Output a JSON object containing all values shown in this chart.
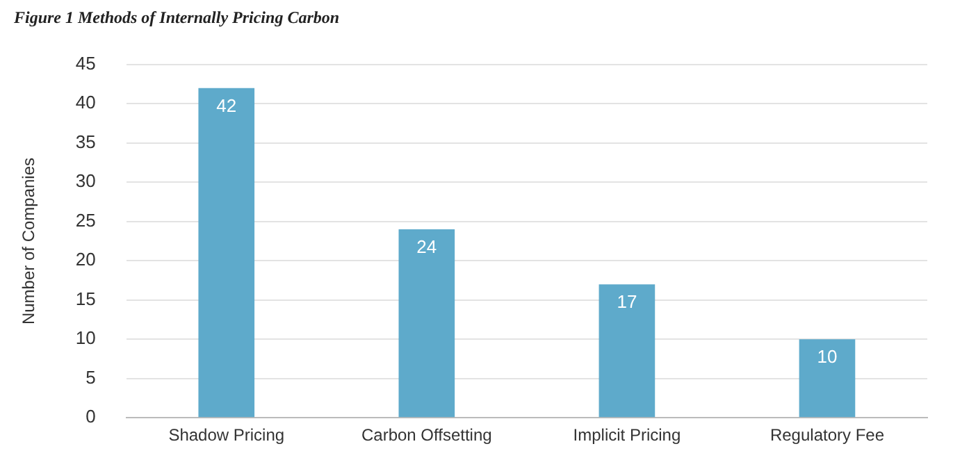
{
  "chart_data": {
    "type": "bar",
    "title": "Figure 1 Methods of Internally Pricing Carbon",
    "ylabel": "Number of Companies",
    "categories": [
      "Shadow Pricing",
      "Carbon Offsetting",
      "Implicit Pricing",
      "Regulatory Fee"
    ],
    "values": [
      42,
      24,
      17,
      10
    ],
    "color": "#5eaacb",
    "ylim": [
      0,
      45
    ],
    "yticks": [
      0,
      5,
      10,
      15,
      20,
      25,
      30,
      35,
      40,
      45
    ],
    "grid": "y",
    "data_labels": true,
    "legend": false
  }
}
